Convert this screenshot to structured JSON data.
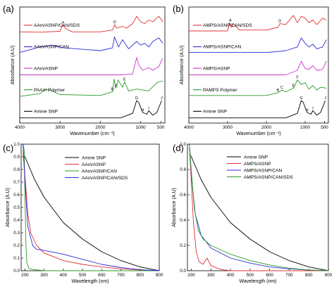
{
  "chart_data": [
    {
      "panel": "(a)",
      "type": "line",
      "title": "",
      "xlabel": "Wavenumber (cm⁻¹)",
      "ylabel": "Absorbance (A.U)",
      "xlim": [
        4000,
        400
      ],
      "x_reversed": true,
      "xticks": [
        "4000",
        "3000",
        "2000",
        "1000",
        "500"
      ],
      "xtick_values": [
        4000,
        3000,
        2000,
        1000,
        500
      ],
      "series": [
        {
          "name": "AAm/ASNP/CAN/SDS",
          "color": "#e03030",
          "offset": 4,
          "x": [
            4000,
            3500,
            3000,
            2930,
            2870,
            2700,
            2000,
            1700,
            1640,
            1600,
            1450,
            1350,
            1200,
            1100,
            1000,
            900,
            800,
            700,
            550,
            450
          ],
          "y": [
            0.05,
            0.03,
            0.08,
            0.45,
            0.25,
            0.05,
            0.05,
            0.15,
            0.45,
            0.25,
            0.35,
            0.25,
            0.5,
            0.9,
            0.6,
            0.5,
            0.7,
            0.6,
            0.9,
            0.6
          ]
        },
        {
          "name": "AAm/ASNP/CAN",
          "color": "#2b2bd6",
          "offset": 3,
          "x": [
            4000,
            3500,
            3200,
            2900,
            2000,
            1700,
            1650,
            1550,
            1450,
            1300,
            1100,
            1000,
            900,
            800,
            700,
            550,
            450
          ],
          "y": [
            0.1,
            0.4,
            0.5,
            0.35,
            0.2,
            0.35,
            0.95,
            0.4,
            0.8,
            0.3,
            0.7,
            0.5,
            0.6,
            0.4,
            0.7,
            0.9,
            0.6
          ]
        },
        {
          "name": "AAm/ASNP",
          "color": "#cc33cc",
          "offset": 2,
          "x": [
            4000,
            3000,
            2000,
            1500,
            1200,
            1100,
            1050,
            950,
            800,
            700,
            550,
            460
          ],
          "y": [
            0.05,
            0.05,
            0.05,
            0.05,
            0.1,
            1.0,
            0.6,
            0.3,
            0.45,
            0.3,
            0.5,
            0.95
          ]
        },
        {
          "name": "PAAm Polymer",
          "color": "#2a9a2a",
          "offset": 1,
          "x": [
            4000,
            3500,
            3350,
            3200,
            3000,
            2000,
            1700,
            1660,
            1620,
            1560,
            1450,
            1400,
            1300,
            1100,
            800,
            600,
            450
          ],
          "y": [
            0.05,
            0.2,
            0.45,
            0.35,
            0.15,
            0.1,
            0.3,
            1.0,
            0.5,
            0.95,
            0.55,
            0.85,
            0.35,
            0.45,
            0.35,
            0.8,
            0.9
          ]
        },
        {
          "name": "Amine SNP",
          "color": "#000000",
          "offset": 0,
          "x": [
            4000,
            3000,
            2000,
            1500,
            1200,
            1100,
            1050,
            950,
            850,
            800,
            700,
            600,
            480
          ],
          "y": [
            0.05,
            0.05,
            0.05,
            0.05,
            0.3,
            1.0,
            0.9,
            0.35,
            0.25,
            0.45,
            0.2,
            0.35,
            1.0
          ]
        }
      ],
      "annotations": [
        {
          "text": "a",
          "x": 2930,
          "series": 0
        },
        {
          "text": "D",
          "x": 1640,
          "series": 0
        },
        {
          "text": "B",
          "x": 1700,
          "series": 3
        },
        {
          "text": "C",
          "x": 1600,
          "series": 3
        },
        {
          "text": "E",
          "x": 1400,
          "series": 3
        },
        {
          "text": "G",
          "x": 1100,
          "series": 4
        },
        {
          "text": "H",
          "x": 950,
          "series": 4
        },
        {
          "text": "I",
          "x": 800,
          "series": 4
        },
        {
          "text": "J",
          "x": 480,
          "series": 4
        }
      ]
    },
    {
      "panel": "(b)",
      "type": "line",
      "title": "",
      "xlabel": "Wavenumber (cm⁻¹)",
      "ylabel": "Absorbance (A.U)",
      "xlim": [
        4000,
        400
      ],
      "x_reversed": true,
      "xticks": [
        "4000",
        "3000",
        "2000",
        "1000",
        "500"
      ],
      "xtick_values": [
        4000,
        3000,
        2000,
        1000,
        500
      ],
      "series": [
        {
          "name": "AMPS/ASNP/CAN/SDS",
          "color": "#e03030",
          "offset": 4,
          "x": [
            4000,
            3000,
            2950,
            2900,
            2850,
            2700,
            2000,
            1700,
            1650,
            1500,
            1300,
            1200,
            1100,
            1000,
            900,
            800,
            700,
            550,
            450
          ],
          "y": [
            0.1,
            0.1,
            0.55,
            0.3,
            0.5,
            0.15,
            0.15,
            0.3,
            0.5,
            0.45,
            0.95,
            0.55,
            0.9,
            0.8,
            0.55,
            0.7,
            0.45,
            0.8,
            0.7
          ]
        },
        {
          "name": "AMPS/ASNP/CAN",
          "color": "#2b2bd6",
          "offset": 3,
          "x": [
            4000,
            3000,
            2000,
            1700,
            1500,
            1200,
            1100,
            1000,
            900,
            800,
            700,
            550,
            450
          ],
          "y": [
            0.1,
            0.1,
            0.1,
            0.15,
            0.2,
            0.4,
            0.9,
            0.6,
            0.4,
            0.55,
            0.3,
            0.4,
            0.8
          ]
        },
        {
          "name": "AMPS/ASNP",
          "color": "#cc33cc",
          "offset": 2,
          "x": [
            4000,
            3000,
            2000,
            1500,
            1200,
            1100,
            1000,
            900,
            800,
            700,
            550,
            450
          ],
          "y": [
            0.05,
            0.05,
            0.05,
            0.05,
            0.3,
            0.8,
            0.4,
            0.35,
            0.55,
            0.3,
            0.35,
            0.8
          ]
        },
        {
          "name": "PAMPS Polymer",
          "color": "#2a9a2a",
          "offset": 1,
          "x": [
            4000,
            3000,
            2000,
            1700,
            1600,
            1500,
            1300,
            1200,
            1100,
            1000,
            900,
            800,
            700,
            600,
            450
          ],
          "y": [
            0.1,
            0.1,
            0.1,
            0.25,
            0.4,
            0.3,
            0.5,
            0.95,
            0.7,
            0.8,
            0.45,
            0.65,
            0.4,
            0.55,
            0.5
          ]
        },
        {
          "name": "Amine SNP",
          "color": "#000000",
          "offset": 0,
          "x": [
            4000,
            3000,
            2000,
            1500,
            1200,
            1100,
            1050,
            950,
            850,
            800,
            700,
            600,
            480
          ],
          "y": [
            0.05,
            0.05,
            0.05,
            0.05,
            0.3,
            1.0,
            0.9,
            0.35,
            0.25,
            0.45,
            0.2,
            0.35,
            1.0
          ]
        }
      ],
      "annotations": [
        {
          "text": "A",
          "x": 2930,
          "series": 0
        },
        {
          "text": "D",
          "x": 1650,
          "series": 0
        },
        {
          "text": "B",
          "x": 1700,
          "series": 3
        },
        {
          "text": "C",
          "x": 1600,
          "series": 3
        },
        {
          "text": "E",
          "x": 1300,
          "series": 3
        },
        {
          "text": "F",
          "x": 1200,
          "series": 3
        },
        {
          "text": "G",
          "x": 1100,
          "series": 4
        },
        {
          "text": "H",
          "x": 950,
          "series": 4
        },
        {
          "text": "I",
          "x": 800,
          "series": 4
        },
        {
          "text": "J",
          "x": 480,
          "series": 4
        }
      ]
    },
    {
      "panel": "(c)",
      "type": "line",
      "title": "",
      "xlabel": "Wavelength (nm)",
      "ylabel": "Absorbance (A.U)",
      "xlim": [
        180,
        900
      ],
      "ylim": [
        0,
        1.0
      ],
      "xticks": [
        "200",
        "300",
        "400",
        "500",
        "600",
        "700",
        "800",
        "900"
      ],
      "xtick_values": [
        200,
        300,
        400,
        500,
        600,
        700,
        800,
        900
      ],
      "yticks": [
        "0.0",
        "0.1",
        "0.2",
        "0.3",
        "0.4",
        "0.5",
        "0.6",
        "0.7",
        "0.8",
        "0.9",
        "1.0"
      ],
      "ytick_values": [
        0,
        0.1,
        0.2,
        0.3,
        0.4,
        0.5,
        0.6,
        0.7,
        0.8,
        0.9,
        1.0
      ],
      "legend_position": "top-right",
      "series": [
        {
          "name": "Amine SNP",
          "color": "#000000",
          "x": [
            190,
            200,
            250,
            300,
            400,
            500,
            600,
            700,
            800,
            900
          ],
          "y": [
            0.92,
            0.9,
            0.72,
            0.58,
            0.38,
            0.25,
            0.15,
            0.08,
            0.03,
            0.0
          ]
        },
        {
          "name": "AAm/ASNP",
          "color": "#e03030",
          "x": [
            190,
            200,
            215,
            230,
            260,
            300,
            400,
            500,
            600,
            700,
            800,
            900
          ],
          "y": [
            0.95,
            0.75,
            0.45,
            0.3,
            0.2,
            0.14,
            0.08,
            0.05,
            0.03,
            0.015,
            0.005,
            0.0
          ]
        },
        {
          "name": "AAm/ASNP/CAN",
          "color": "#2a9a2a",
          "x": [
            190,
            196,
            200,
            205,
            210,
            220,
            240,
            300,
            500,
            900
          ],
          "y": [
            1.0,
            0.95,
            0.6,
            0.2,
            0.06,
            0.02,
            0.01,
            0.0,
            0.0,
            0.0
          ]
        },
        {
          "name": "AAm/ASNP/CAN/SDS",
          "color": "#2b2bd6",
          "x": [
            190,
            200,
            215,
            240,
            260,
            300,
            400,
            500,
            600,
            700,
            800,
            900
          ],
          "y": [
            1.0,
            0.7,
            0.35,
            0.2,
            0.17,
            0.16,
            0.13,
            0.09,
            0.05,
            0.025,
            0.008,
            0.0
          ]
        }
      ]
    },
    {
      "panel": "(d)",
      "type": "line",
      "title": "",
      "xlabel": "Wavelength (nm)",
      "ylabel": "Absorbance (A.U)",
      "xlim": [
        180,
        900
      ],
      "ylim": [
        0,
        1.0
      ],
      "xticks": [
        "200",
        "300",
        "400",
        "500",
        "600",
        "700",
        "800",
        "900"
      ],
      "xtick_values": [
        200,
        300,
        400,
        500,
        600,
        700,
        800,
        900
      ],
      "yticks": [
        "0.0",
        "0.2",
        "0.4",
        "0.6",
        "0.8",
        "1.0"
      ],
      "ytick_values": [
        0,
        0.2,
        0.4,
        0.6,
        0.8,
        1.0
      ],
      "legend_position": "top-right",
      "series": [
        {
          "name": "Amine SNP",
          "color": "#000000",
          "x": [
            190,
            200,
            250,
            300,
            400,
            500,
            600,
            700,
            800,
            900
          ],
          "y": [
            0.92,
            0.9,
            0.72,
            0.58,
            0.38,
            0.25,
            0.15,
            0.08,
            0.03,
            0.0
          ]
        },
        {
          "name": "AMPS/ASNP",
          "color": "#e03030",
          "x": [
            190,
            200,
            210,
            225,
            240,
            260,
            280,
            300,
            350,
            400,
            900
          ],
          "y": [
            0.98,
            0.7,
            0.4,
            0.15,
            0.07,
            0.05,
            0.1,
            0.04,
            0.01,
            0.0,
            0.0
          ]
        },
        {
          "name": "AMPS/ASNP/CAN",
          "color": "#2b2bd6",
          "x": [
            190,
            200,
            220,
            250,
            300,
            400,
            500,
            600,
            700,
            800,
            900
          ],
          "y": [
            1.0,
            0.75,
            0.45,
            0.28,
            0.18,
            0.1,
            0.06,
            0.03,
            0.015,
            0.005,
            0.0
          ]
        },
        {
          "name": "AMPS/ASNP/CAN/SDS",
          "color": "#2a9a2a",
          "x": [
            190,
            200,
            215,
            235,
            260,
            300,
            400,
            500,
            600,
            700,
            800,
            900
          ],
          "y": [
            1.0,
            0.78,
            0.5,
            0.32,
            0.25,
            0.2,
            0.13,
            0.08,
            0.045,
            0.02,
            0.006,
            0.0
          ]
        }
      ]
    }
  ]
}
